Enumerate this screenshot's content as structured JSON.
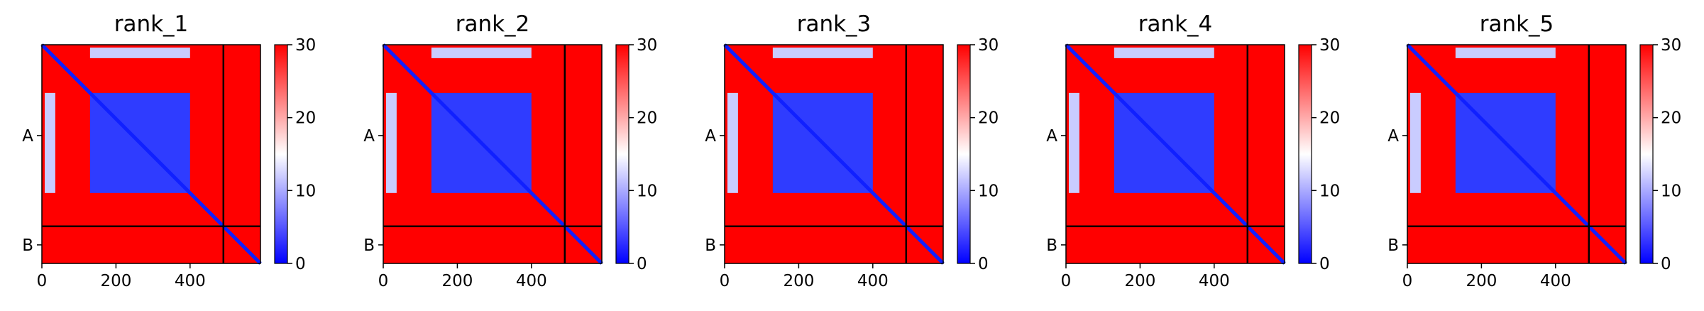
{
  "chart_data": [
    {
      "type": "heatmap",
      "title": "rank_1",
      "x_range": [
        0,
        590
      ],
      "x_ticks": [
        "0",
        "200",
        "400"
      ],
      "y_tick_labels": [
        "A",
        "B"
      ],
      "chains": [
        {
          "name": "A",
          "length": 490
        },
        {
          "name": "B",
          "length": 100
        }
      ],
      "chain_boundary": 490,
      "colorbar": {
        "min": 0,
        "max": 30,
        "ticks": [
          "0",
          "10",
          "20",
          "30"
        ],
        "colormap": "bwr"
      },
      "blocks": [
        [
          0,
          490,
          "high",
          30
        ],
        [
          490,
          590,
          "high",
          30
        ],
        [
          130,
          400,
          "low",
          5
        ],
        [
          60,
          130,
          "mid",
          10
        ],
        [
          0,
          40,
          "mid",
          9
        ]
      ]
    },
    {
      "type": "heatmap",
      "title": "rank_2",
      "x_range": [
        0,
        590
      ],
      "x_ticks": [
        "0",
        "200",
        "400"
      ],
      "y_tick_labels": [
        "A",
        "B"
      ],
      "chains": [
        {
          "name": "A",
          "length": 490
        },
        {
          "name": "B",
          "length": 100
        }
      ],
      "chain_boundary": 490,
      "colorbar": {
        "min": 0,
        "max": 30,
        "ticks": [
          "0",
          "10",
          "20",
          "30"
        ],
        "colormap": "bwr"
      },
      "blocks": [
        [
          0,
          490,
          "high",
          30
        ],
        [
          490,
          590,
          "high",
          30
        ],
        [
          130,
          400,
          "low",
          5
        ],
        [
          60,
          130,
          "mid",
          10
        ],
        [
          0,
          40,
          "mid",
          9
        ]
      ]
    },
    {
      "type": "heatmap",
      "title": "rank_3",
      "x_range": [
        0,
        590
      ],
      "x_ticks": [
        "0",
        "200",
        "400"
      ],
      "y_tick_labels": [
        "A",
        "B"
      ],
      "chains": [
        {
          "name": "A",
          "length": 490
        },
        {
          "name": "B",
          "length": 100
        }
      ],
      "chain_boundary": 490,
      "colorbar": {
        "min": 0,
        "max": 30,
        "ticks": [
          "0",
          "10",
          "20",
          "30"
        ],
        "colormap": "bwr"
      },
      "blocks": [
        [
          0,
          490,
          "high",
          30
        ],
        [
          490,
          590,
          "high",
          30
        ],
        [
          130,
          400,
          "low",
          5
        ],
        [
          60,
          130,
          "mid",
          10
        ],
        [
          0,
          40,
          "mid",
          9
        ]
      ]
    },
    {
      "type": "heatmap",
      "title": "rank_4",
      "x_range": [
        0,
        590
      ],
      "x_ticks": [
        "0",
        "200",
        "400"
      ],
      "y_tick_labels": [
        "A",
        "B"
      ],
      "chains": [
        {
          "name": "A",
          "length": 490
        },
        {
          "name": "B",
          "length": 100
        }
      ],
      "chain_boundary": 490,
      "colorbar": {
        "min": 0,
        "max": 30,
        "ticks": [
          "0",
          "10",
          "20",
          "30"
        ],
        "colormap": "bwr"
      },
      "blocks": [
        [
          0,
          490,
          "high",
          30
        ],
        [
          490,
          590,
          "high",
          30
        ],
        [
          130,
          400,
          "low",
          5
        ],
        [
          60,
          130,
          "mid",
          10
        ],
        [
          0,
          40,
          "mid",
          9
        ]
      ]
    },
    {
      "type": "heatmap",
      "title": "rank_5",
      "x_range": [
        0,
        590
      ],
      "x_ticks": [
        "0",
        "200",
        "400"
      ],
      "y_tick_labels": [
        "A",
        "B"
      ],
      "chains": [
        {
          "name": "A",
          "length": 490
        },
        {
          "name": "B",
          "length": 100
        }
      ],
      "chain_boundary": 490,
      "colorbar": {
        "min": 0,
        "max": 30,
        "ticks": [
          "0",
          "10",
          "20",
          "30"
        ],
        "colormap": "bwr"
      },
      "blocks": [
        [
          0,
          490,
          "high",
          30
        ],
        [
          490,
          590,
          "high",
          30
        ],
        [
          130,
          400,
          "low",
          5
        ],
        [
          60,
          130,
          "mid",
          10
        ],
        [
          0,
          40,
          "mid",
          9
        ]
      ]
    }
  ]
}
